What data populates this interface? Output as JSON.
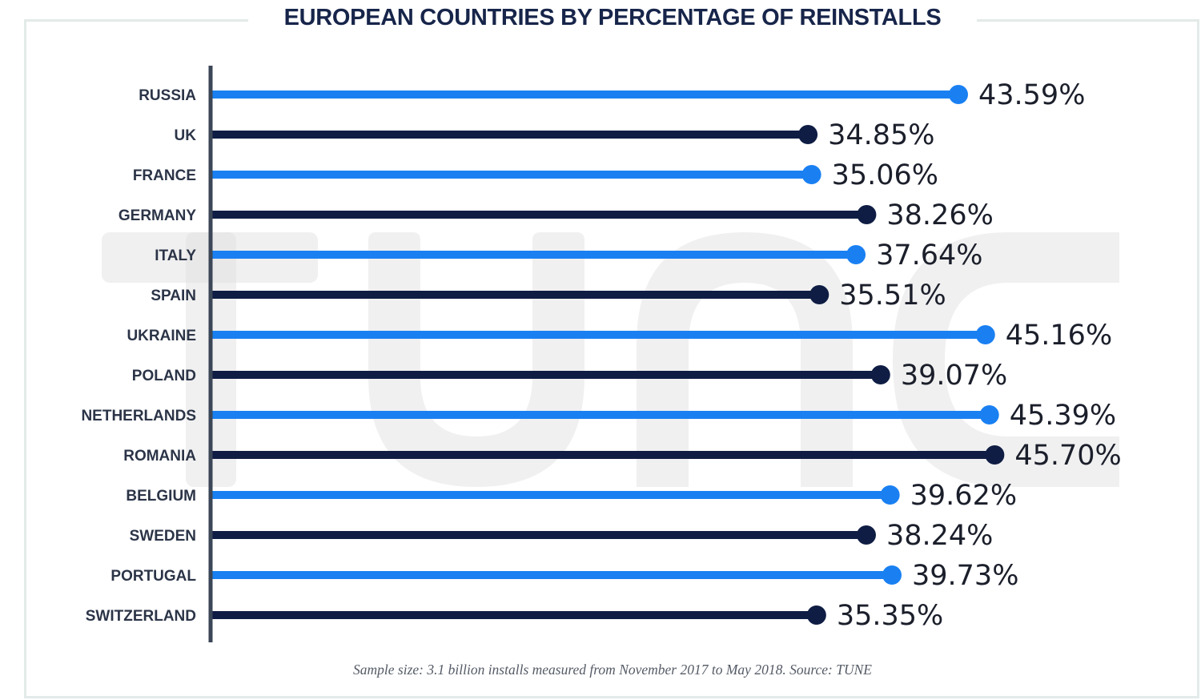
{
  "header": {
    "title": "EUROPEAN COUNTRIES BY PERCENTAGE OF REINSTALLS"
  },
  "footer": {
    "note": "Sample size: 3.1 billion installs measured from November 2017 to May 2018. Source: TUNE"
  },
  "watermark": {
    "text": "tune"
  },
  "colors": {
    "light": "#1a80f2",
    "dark": "#0f1d44",
    "axis": "#3b4657"
  },
  "chart_data": {
    "type": "bar",
    "orientation": "horizontal",
    "style": "lollipop",
    "title": "EUROPEAN COUNTRIES BY PERCENTAGE OF REINSTALLS",
    "categories": [
      "RUSSIA",
      "UK",
      "FRANCE",
      "GERMANY",
      "ITALY",
      "SPAIN",
      "UKRAINE",
      "POLAND",
      "NETHERLANDS",
      "ROMANIA",
      "BELGIUM",
      "SWEDEN",
      "PORTUGAL",
      "SWITZERLAND"
    ],
    "values": [
      43.59,
      34.85,
      35.06,
      38.26,
      37.64,
      35.51,
      45.16,
      39.07,
      45.39,
      45.7,
      39.62,
      38.24,
      39.73,
      35.35
    ],
    "value_labels": [
      "43.59%",
      "34.85%",
      "35.06%",
      "38.26%",
      "37.64%",
      "35.51%",
      "45.16%",
      "39.07%",
      "45.39%",
      "45.70%",
      "39.62%",
      "38.24%",
      "39.73%",
      "35.35%"
    ],
    "bar_colors": [
      "light",
      "dark",
      "light",
      "dark",
      "light",
      "dark",
      "light",
      "dark",
      "light",
      "dark",
      "light",
      "dark",
      "light",
      "dark"
    ],
    "grid": false,
    "legend": "none"
  }
}
